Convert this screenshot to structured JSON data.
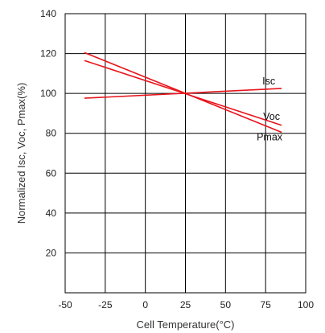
{
  "chart_data": {
    "type": "line",
    "xlabel": "Cell Temperature(°C)",
    "ylabel": "Normalized Isc, Voc, Pmax(%)",
    "xlim": [
      -50,
      100
    ],
    "ylim": [
      0,
      140
    ],
    "xticks": [
      -50,
      -25,
      0,
      25,
      50,
      75,
      100
    ],
    "yticks": [
      20,
      40,
      60,
      80,
      100,
      120,
      140
    ],
    "grid": true,
    "line_color": "#e8141b",
    "series": [
      {
        "name": "Isc",
        "x": [
          -38,
          85
        ],
        "y": [
          97.6,
          102.5
        ]
      },
      {
        "name": "Voc",
        "x": [
          -38,
          85
        ],
        "y": [
          116.5,
          84
        ]
      },
      {
        "name": "Pmax",
        "x": [
          -38,
          85
        ],
        "y": [
          120.5,
          80.5
        ]
      }
    ]
  }
}
